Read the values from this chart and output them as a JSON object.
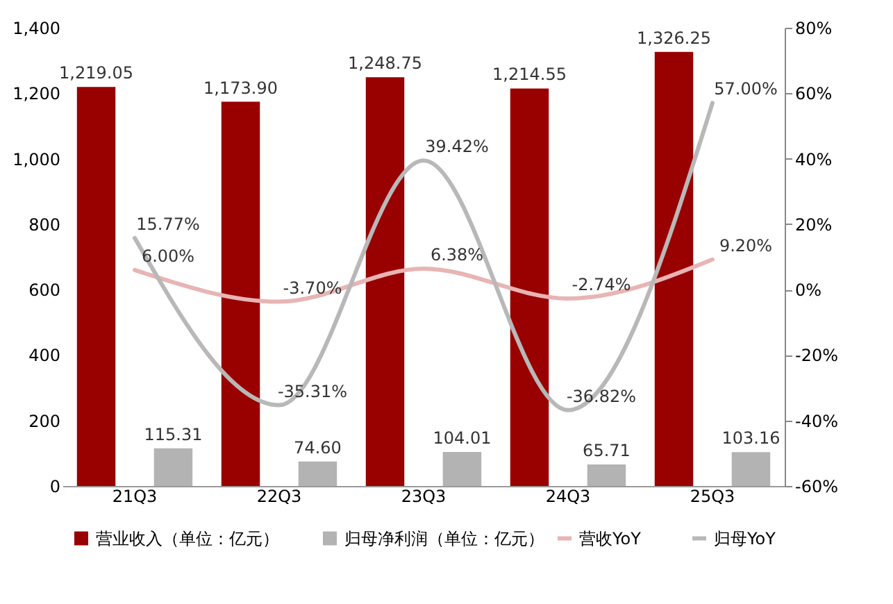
{
  "chart_data": {
    "type": "bar",
    "categories": [
      "21Q3",
      "22Q3",
      "23Q3",
      "24Q3",
      "25Q3"
    ],
    "series": [
      {
        "name": "营业收入（单位：亿元）",
        "color": "#990000",
        "values": [
          1219.05,
          1173.9,
          1248.75,
          1214.55,
          1326.25
        ],
        "value_labels": [
          "1,219.05",
          "1,173.90",
          "1,248.75",
          "1,214.55",
          "1,326.25"
        ]
      },
      {
        "name": "归母净利润（单位：亿元）",
        "color": "#b3b3b3",
        "values": [
          115.31,
          74.6,
          104.01,
          65.71,
          103.16
        ],
        "value_labels": [
          "115.31",
          "74.60",
          "104.01",
          "65.71",
          "103.16"
        ]
      },
      {
        "name": "营收YoY",
        "type": "line",
        "axis": "y2",
        "color": "#e8b4b4",
        "values": [
          6.0,
          -3.7,
          6.38,
          -2.74,
          9.2
        ],
        "value_labels": [
          "6.00%",
          "-3.70%",
          "6.38%",
          "-2.74%",
          "9.20%"
        ]
      },
      {
        "name": "归母YoY",
        "type": "line",
        "axis": "y2",
        "color": "#b8b8b8",
        "values": [
          15.77,
          -35.31,
          39.42,
          -36.82,
          57.0
        ],
        "value_labels": [
          "15.77%",
          "-35.31%",
          "39.42%",
          "-36.82%",
          "57.00%"
        ]
      }
    ],
    "ylim": [
      0,
      1400
    ],
    "yticks": [
      0,
      {
        "value": 200,
        "label": "200"
      },
      {
        "value": 400,
        "label": "400"
      },
      {
        "value": 600,
        "label": "600"
      },
      {
        "value": 800,
        "label": "800"
      },
      {
        "value": 1000,
        "label": "1,000"
      },
      {
        "value": 1200,
        "label": "1,200"
      },
      {
        "value": 1400,
        "label": "1,400"
      }
    ],
    "y2lim": [
      -60,
      80
    ],
    "y2ticks": [
      {
        "value": -60,
        "label": "-60%"
      },
      {
        "value": -40,
        "label": "-40%"
      },
      {
        "value": -20,
        "label": "-20%"
      },
      {
        "value": 0,
        "label": "0%"
      },
      {
        "value": 20,
        "label": "20%"
      },
      {
        "value": 40,
        "label": "40%"
      },
      {
        "value": 60,
        "label": "60%"
      },
      {
        "value": 80,
        "label": "80%"
      }
    ],
    "legend": "bottom",
    "grid": false
  }
}
